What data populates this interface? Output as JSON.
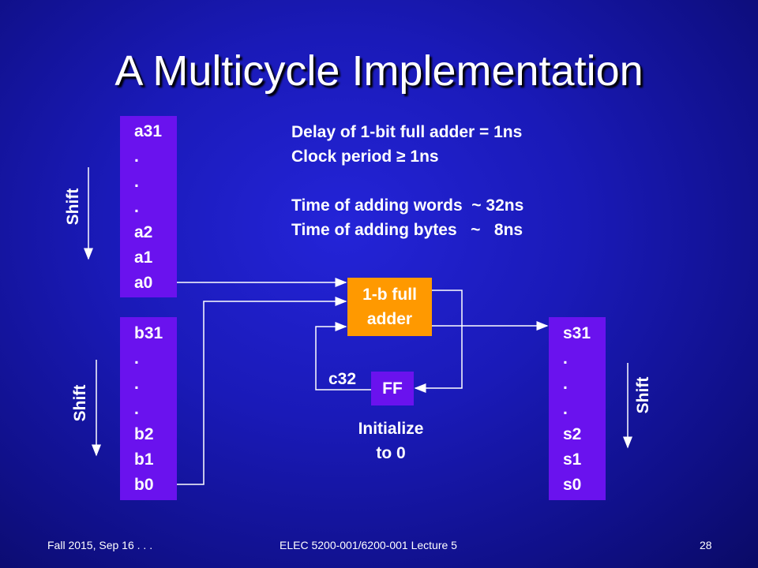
{
  "title": "A Multicycle Implementation",
  "register_a": [
    "a31",
    ".",
    ".",
    ".",
    "a2",
    "a1",
    "a0"
  ],
  "register_b": [
    "b31",
    ".",
    ".",
    ".",
    "b2",
    "b1",
    "b0"
  ],
  "register_s": [
    "s31",
    ".",
    ".",
    ".",
    "s2",
    "s1",
    "s0"
  ],
  "notes": [
    "Delay of 1-bit full adder = 1ns",
    "Clock period ≥ 1ns",
    "",
    "Time of adding words  ~ 32ns",
    "Time of adding bytes   ~   8ns"
  ],
  "adder": {
    "line1": "1-b full",
    "line2": "adder"
  },
  "flipflop": {
    "label": "FF",
    "carry_label": "c32",
    "init_line1": "Initialize",
    "init_line2": "to 0"
  },
  "shift_label": "Shift",
  "colors": {
    "register": "#6a12ee",
    "adder": "#ff9900",
    "wire": "#ffffff"
  },
  "footer": {
    "left": "Fall 2015, Sep 16 . . .",
    "center": "ELEC 5200-001/6200-001 Lecture 5",
    "page": "28"
  }
}
